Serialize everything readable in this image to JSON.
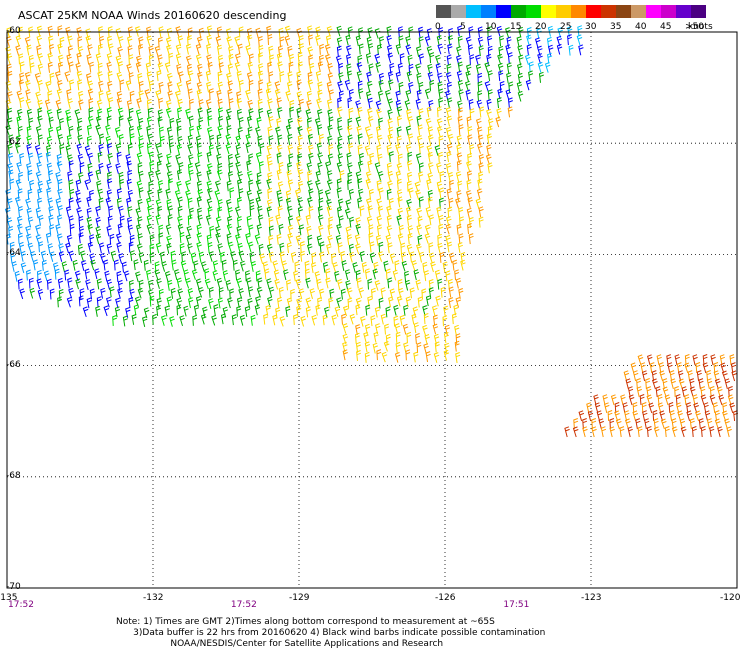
{
  "title": "ASCAT 25KM NOAA Winds 20160620 descending",
  "legend": {
    "colors": [
      "#555555",
      "#aaaaaa",
      "#00bfff",
      "#0080ff",
      "#0000ff",
      "#00aa00",
      "#00dd00",
      "#ffff00",
      "#ffcc00",
      "#ff8800",
      "#ff0000",
      "#cc3300",
      "#8b4513",
      "#cc9966",
      "#ff00ff",
      "#cc00cc",
      "#6600cc",
      "#4b0082"
    ],
    "labels": [
      "0",
      "5",
      "10",
      "15",
      "20",
      "25",
      "30",
      "35",
      "40",
      "45",
      ">50"
    ],
    "units": "knots"
  },
  "axes": {
    "lat_labels": [
      "-60",
      "-62",
      "-64",
      "-66",
      "-68",
      "-70"
    ],
    "lon_labels": [
      "-135",
      "-132",
      "-129",
      "-126",
      "-123",
      "-120"
    ],
    "lat_range": [
      -70,
      -60
    ],
    "lon_range": [
      -135,
      -120
    ],
    "time_labels": [
      {
        "time": "17:52",
        "lon": -135
      },
      {
        "time": "17:52",
        "lon": -130.4
      },
      {
        "time": "17:51",
        "lon": -124.8
      }
    ]
  },
  "notes": [
    "Note: 1) Times are GMT 2)Times along bottom correspond to measurement at ~65S",
    "      3)Data buffer is 22 hrs from 20160620 4) Black wind barbs indicate possible contamination",
    "                   NOAA/NESDIS/Center for Satellite Applications and Research"
  ]
}
